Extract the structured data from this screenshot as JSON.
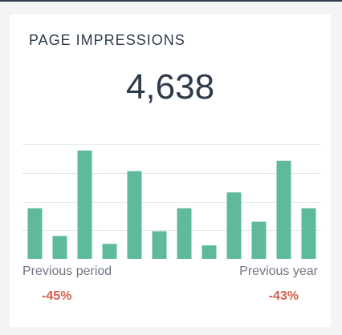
{
  "widget": {
    "title": "PAGE IMPRESSIONS",
    "value": "4,638"
  },
  "comparison": {
    "left_label": "Previous period",
    "left_value": "-45%",
    "right_label": "Previous year",
    "right_value": "-43%"
  },
  "colors": {
    "bar": "#5fba9c",
    "grid": "#e3e7ec",
    "negative": "#d35f4d",
    "text_dark": "#2f3b4a",
    "text_muted": "#6f7681"
  },
  "chart_data": {
    "type": "bar",
    "values": [
      64,
      29,
      137,
      19,
      111,
      35,
      64,
      17,
      84,
      47,
      124,
      64
    ],
    "ylim": [
      0,
      150
    ],
    "grid": true
  }
}
